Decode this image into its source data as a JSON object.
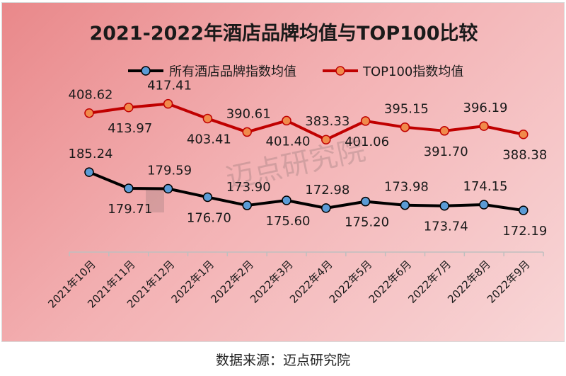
{
  "source_label": "数据来源：迈点研究院",
  "watermark": "迈点研究院",
  "colors": {
    "series_all": "#000000",
    "series_all_marker": "#5b9bd5",
    "series_top": "#c00000",
    "series_top_marker": "#f08a4b"
  },
  "chart_data": {
    "type": "line",
    "title": "2021-2022年酒店品牌均值与TOP100比较",
    "categories": [
      "2021年10月",
      "2021年11月",
      "2021年12月",
      "2022年1月",
      "2022年2月",
      "2022年3月",
      "2022年4月",
      "2022年5月",
      "2022年6月",
      "2022年7月",
      "2022年8月",
      "2022年9月"
    ],
    "series": [
      {
        "name": "所有酒店品牌指数均值",
        "values": [
          185.24,
          179.71,
          179.59,
          176.7,
          173.9,
          175.6,
          172.98,
          175.2,
          173.98,
          173.74,
          174.15,
          172.19
        ],
        "labels": [
          "185.24",
          "179.71",
          "179.59",
          "176.70",
          "173.90",
          "175.60",
          "172.98",
          "175.20",
          "173.98",
          "173.74",
          "174.15",
          "172.19"
        ]
      },
      {
        "name": "TOP100指数均值",
        "values": [
          408.62,
          413.97,
          417.41,
          403.41,
          390.61,
          401.4,
          383.33,
          401.06,
          395.15,
          391.7,
          396.19,
          388.38
        ],
        "labels": [
          "408.62",
          "413.97",
          "417.41",
          "403.41",
          "390.61",
          "401.40",
          "383.33",
          "401.06",
          "395.15",
          "391.70",
          "396.19",
          "388.38"
        ]
      }
    ],
    "legend_position": "top",
    "grid": false
  }
}
